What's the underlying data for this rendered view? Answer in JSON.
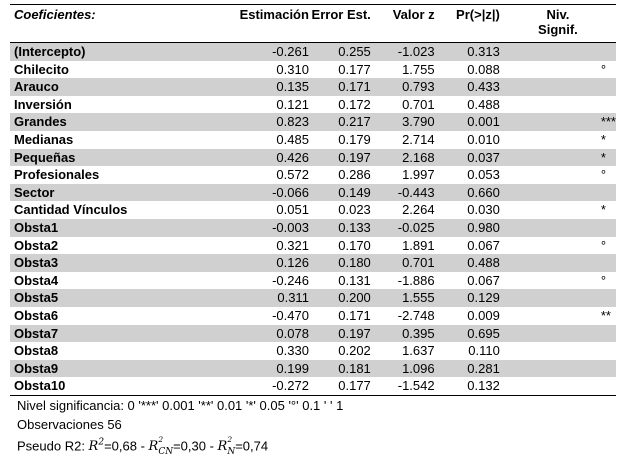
{
  "headers": {
    "name": "Coeficientes:",
    "est": "Estimación",
    "err": "Error Est.",
    "z": "Valor z",
    "p": "Pr(>|z|)",
    "sig1": "Niv.",
    "sig2": "Signif."
  },
  "rows": [
    {
      "name": "(Intercepto)",
      "est": "-0.261",
      "err": "0.255",
      "z": "-1.023",
      "p": "0.313",
      "sig": ""
    },
    {
      "name": "Chilecito",
      "est": "0.310",
      "err": "0.177",
      "z": "1.755",
      "p": "0.088",
      "sig": "°"
    },
    {
      "name": "Arauco",
      "est": "0.135",
      "err": "0.171",
      "z": "0.793",
      "p": "0.433",
      "sig": ""
    },
    {
      "name": "Inversión",
      "est": "0.121",
      "err": "0.172",
      "z": "0.701",
      "p": "0.488",
      "sig": ""
    },
    {
      "name": "Grandes",
      "est": "0.823",
      "err": "0.217",
      "z": "3.790",
      "p": "0.001",
      "sig": "***"
    },
    {
      "name": "Medianas",
      "est": "0.485",
      "err": "0.179",
      "z": "2.714",
      "p": "0.010",
      "sig": "*"
    },
    {
      "name": "Pequeñas",
      "est": "0.426",
      "err": "0.197",
      "z": "2.168",
      "p": "0.037",
      "sig": "*"
    },
    {
      "name": "Profesionales",
      "est": "0.572",
      "err": "0.286",
      "z": "1.997",
      "p": "0.053",
      "sig": "°"
    },
    {
      "name": "Sector",
      "est": "-0.066",
      "err": "0.149",
      "z": "-0.443",
      "p": "0.660",
      "sig": ""
    },
    {
      "name": "Cantidad Vínculos",
      "est": "0.051",
      "err": "0.023",
      "z": "2.264",
      "p": "0.030",
      "sig": "*"
    },
    {
      "name": "Obsta1",
      "est": "-0.003",
      "err": "0.133",
      "z": "-0.025",
      "p": "0.980",
      "sig": ""
    },
    {
      "name": "Obsta2",
      "est": "0.321",
      "err": "0.170",
      "z": "1.891",
      "p": "0.067",
      "sig": "°"
    },
    {
      "name": "Obsta3",
      "est": "0.126",
      "err": "0.180",
      "z": "0.701",
      "p": "0.488",
      "sig": ""
    },
    {
      "name": "Obsta4",
      "est": "-0.246",
      "err": "0.131",
      "z": "-1.886",
      "p": "0.067",
      "sig": "°"
    },
    {
      "name": "Obsta5",
      "est": "0.311",
      "err": "0.200",
      "z": "1.555",
      "p": "0.129",
      "sig": ""
    },
    {
      "name": "Obsta6",
      "est": "-0.470",
      "err": "0.171",
      "z": "-2.748",
      "p": "0.009",
      "sig": "**"
    },
    {
      "name": "Obsta7",
      "est": "0.078",
      "err": "0.197",
      "z": "0.395",
      "p": "0.695",
      "sig": ""
    },
    {
      "name": "Obsta8",
      "est": "0.330",
      "err": "0.202",
      "z": "1.637",
      "p": "0.110",
      "sig": ""
    },
    {
      "name": "Obsta9",
      "est": "0.199",
      "err": "0.181",
      "z": "1.096",
      "p": "0.281",
      "sig": ""
    },
    {
      "name": "Obsta10",
      "est": "-0.272",
      "err": "0.177",
      "z": "-1.542",
      "p": "0.132",
      "sig": ""
    }
  ],
  "footer": {
    "signif": "Nivel significancia:  0 '***' 0.001  '**' 0.01  '*' 0.05  '°' 0.1  ' ' 1",
    "obs": "Observaciones  56",
    "r2_prefix": "Pseudo R2: ",
    "r2_a": "=0,68 - ",
    "r2_b": "=0,30 - ",
    "r2_c": "=0,74",
    "sub_cn": "CN",
    "sub_n": "N"
  }
}
